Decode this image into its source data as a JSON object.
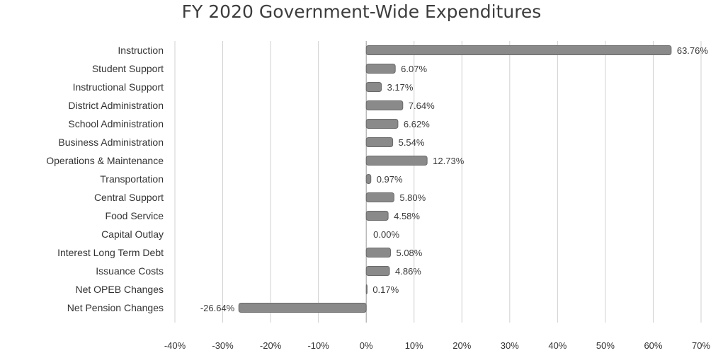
{
  "chart_data": {
    "type": "bar",
    "orientation": "horizontal",
    "title": "FY 2020 Government-Wide  Expenditures",
    "categories": [
      "Instruction",
      "Student Support",
      "Instructional Support",
      "District Administration",
      "School Administration",
      "Business Administration",
      "Operations & Maintenance",
      "Transportation",
      "Central Support",
      "Food Service",
      "Capital Outlay",
      "Interest Long Term Debt",
      "Issuance Costs",
      "Net OPEB Changes",
      "Net Pension Changes"
    ],
    "values": [
      63.76,
      6.07,
      3.17,
      7.64,
      6.62,
      5.54,
      12.73,
      0.97,
      5.8,
      4.58,
      0.0,
      5.08,
      4.86,
      0.17,
      -26.64
    ],
    "value_labels": [
      "63.76%",
      "6.07%",
      "3.17%",
      "7.64%",
      "6.62%",
      "5.54%",
      "12.73%",
      "0.97%",
      "5.80%",
      "4.58%",
      "0.00%",
      "5.08%",
      "4.86%",
      "0.17%",
      "-26.64%"
    ],
    "xlim": [
      -40,
      70
    ],
    "xticks": [
      -40,
      -30,
      -20,
      -10,
      0,
      10,
      20,
      30,
      40,
      50,
      60,
      70
    ],
    "xtick_labels": [
      "-40%",
      "-30%",
      "-20%",
      "-10%",
      "0%",
      "10%",
      "20%",
      "30%",
      "40%",
      "50%",
      "60%",
      "70%"
    ],
    "xlabel": "",
    "ylabel": "",
    "grid": "vertical",
    "legend": "none",
    "colors": {
      "bar": "#8a8a8a",
      "bar_edge": "#6a6a6a",
      "grid": "#d0d0d0",
      "text": "#333333"
    }
  }
}
